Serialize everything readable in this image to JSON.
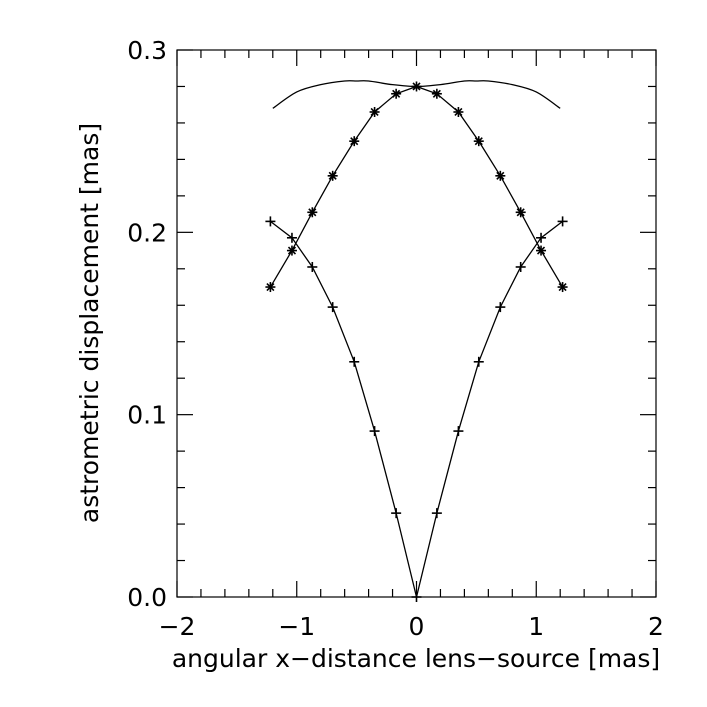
{
  "chart_data": {
    "type": "line",
    "title": "",
    "xlabel": "angular x−distance lens−source [mas]",
    "ylabel": "astrometric displacement [mas]",
    "xlim": [
      -2,
      2
    ],
    "ylim": [
      0,
      0.3
    ],
    "x_ticks": [
      -2,
      -1,
      0,
      1,
      2
    ],
    "x_tick_labels": [
      "−2",
      "−1",
      "0",
      "1",
      "2"
    ],
    "x_minor_step": 0.2,
    "y_ticks": [
      0.0,
      0.1,
      0.2,
      0.3
    ],
    "y_tick_labels": [
      "0.0",
      "0.1",
      "0.2",
      "0.3"
    ],
    "y_minor_step": 0.02,
    "grid": false,
    "legend": "none",
    "series": [
      {
        "marker": "none",
        "curve": "smooth",
        "x": [
          -1.2,
          -1.0,
          -0.8,
          -0.6,
          -0.5,
          -0.4,
          -0.2,
          0.0,
          0.2,
          0.4,
          0.5,
          0.6,
          0.8,
          1.0,
          1.2
        ],
        "y": [
          0.268,
          0.277,
          0.281,
          0.283,
          0.283,
          0.283,
          0.281,
          0.28,
          0.281,
          0.283,
          0.283,
          0.283,
          0.281,
          0.277,
          0.268
        ]
      },
      {
        "marker": "asterisk",
        "curve": "linear",
        "x": [
          -1.22,
          -1.04,
          -0.87,
          -0.7,
          -0.52,
          -0.35,
          -0.17,
          0.0,
          0.17,
          0.35,
          0.52,
          0.7,
          0.87,
          1.04,
          1.22
        ],
        "y": [
          0.17,
          0.19,
          0.211,
          0.231,
          0.25,
          0.266,
          0.276,
          0.28,
          0.276,
          0.266,
          0.25,
          0.231,
          0.211,
          0.19,
          0.17
        ]
      },
      {
        "marker": "plus",
        "curve": "linear",
        "x": [
          -1.22,
          -1.04,
          -0.87,
          -0.7,
          -0.52,
          -0.35,
          -0.17,
          0.0,
          0.17,
          0.35,
          0.52,
          0.7,
          0.87,
          1.04,
          1.22
        ],
        "y": [
          0.206,
          0.197,
          0.181,
          0.159,
          0.129,
          0.091,
          0.046,
          0.0,
          0.046,
          0.091,
          0.129,
          0.159,
          0.181,
          0.197,
          0.206
        ]
      }
    ]
  }
}
